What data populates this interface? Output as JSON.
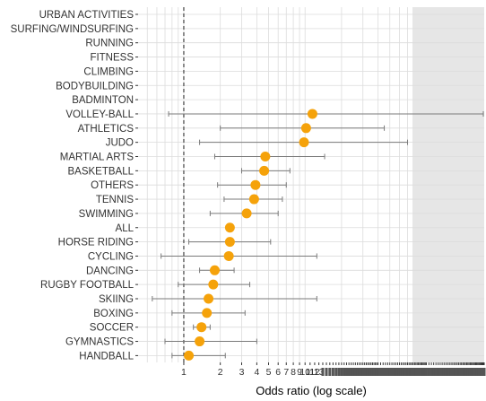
{
  "chart_data": {
    "type": "scatter",
    "subtype": "forest-plot",
    "xlabel": "Odds ratio (log scale)",
    "ylabel": "",
    "x_scale": "log",
    "xlim": [
      0.42,
      300
    ],
    "reference_line": 1,
    "grid": true,
    "legend": "none",
    "colors": {
      "point": "#f5a20a",
      "error_bar": "#7a7a7a",
      "reference_line": "#444444",
      "grid": "#dcdcdc",
      "shaded_region": "#e6e6e6"
    },
    "x_tick_labels": [
      "1",
      "2",
      "3",
      "4",
      "5",
      "6",
      "7",
      "8",
      "9",
      "10",
      "11",
      "12",
      "13"
    ],
    "categories": [
      "URBAN ACTIVITIES",
      "SURFING/WINDSURFING",
      "RUNNING",
      "FITNESS",
      "CLIMBING",
      "BODYBUILDING",
      "BADMINTON",
      "VOLLEY-BALL",
      "ATHLETICS",
      "JUDO",
      "MARTIAL ARTS",
      "BASKETBALL",
      "OTHERS",
      "TENNIS",
      "SWIMMING",
      "ALL",
      "HORSE RIDING",
      "CYCLING",
      "DANCING",
      "RUGBY FOOTBALL",
      "SKIING",
      "BOXING",
      "SOCCER",
      "GYMNASTICS",
      "HANDBALL"
    ],
    "series": [
      {
        "estimate": [
          null,
          null,
          null,
          null,
          null,
          null,
          null,
          11.5,
          10.2,
          9.8,
          4.7,
          4.6,
          3.9,
          3.8,
          3.3,
          2.4,
          2.4,
          2.35,
          1.8,
          1.75,
          1.6,
          1.55,
          1.4,
          1.35,
          1.1
        ],
        "lower": [
          null,
          null,
          null,
          null,
          null,
          null,
          null,
          0.75,
          2.0,
          1.35,
          1.8,
          3.0,
          1.9,
          2.15,
          1.65,
          2.3,
          1.1,
          0.65,
          1.35,
          0.9,
          0.55,
          0.8,
          1.2,
          0.7,
          0.8
        ],
        "upper": [
          null,
          null,
          null,
          null,
          null,
          null,
          null,
          300,
          45,
          70,
          14.5,
          7.5,
          7.0,
          6.5,
          6.0,
          2.5,
          5.2,
          12.5,
          2.6,
          3.5,
          12.5,
          3.2,
          1.65,
          4.0,
          2.2
        ]
      }
    ]
  }
}
